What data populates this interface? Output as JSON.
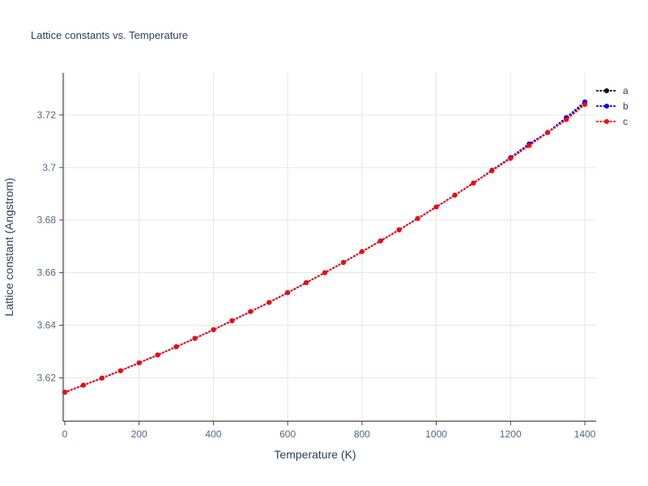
{
  "chart_data": {
    "type": "scatter",
    "title": "Lattice constants vs. Temperature",
    "xlabel": "Temperature (K)",
    "ylabel": "Lattice constant (Angstrom)",
    "xlim": [
      0,
      1400
    ],
    "ylim": [
      3.6035,
      3.736
    ],
    "xticks": [
      0,
      200,
      400,
      600,
      800,
      1000,
      1200,
      1400
    ],
    "xtick_labels": [
      "0",
      "200",
      "400",
      "600",
      "800",
      "1000",
      "1200",
      "1400"
    ],
    "yticks": [
      3.62,
      3.64,
      3.66,
      3.68,
      3.7,
      3.72
    ],
    "ytick_labels": [
      "3.62",
      "3.64",
      "3.66",
      "3.68",
      "3.7",
      "3.72"
    ],
    "grid": true,
    "legend_position": "top-right",
    "line_style": "dotted",
    "x": [
      0,
      50,
      100,
      150,
      200,
      250,
      300,
      350,
      400,
      450,
      500,
      550,
      600,
      650,
      700,
      750,
      800,
      850,
      900,
      950,
      1000,
      1050,
      1100,
      1150,
      1200,
      1250,
      1300,
      1350,
      1400
    ],
    "series": [
      {
        "name": "a",
        "color": "#000000",
        "values": [
          3.6145,
          3.6172,
          3.6199,
          3.6227,
          3.6257,
          3.6287,
          3.6318,
          3.635,
          3.6383,
          3.6417,
          3.6452,
          3.6487,
          3.6524,
          3.6562,
          3.66,
          3.6639,
          3.668,
          3.6721,
          3.6763,
          3.6806,
          3.685,
          3.6895,
          3.6941,
          3.6988,
          3.7035,
          3.7084,
          3.7133,
          3.7184,
          3.7246
        ]
      },
      {
        "name": "b",
        "color": "#0000ff",
        "values": [
          3.6145,
          3.6172,
          3.6199,
          3.6227,
          3.6257,
          3.6287,
          3.6318,
          3.635,
          3.6383,
          3.6417,
          3.6452,
          3.6487,
          3.6524,
          3.6562,
          3.66,
          3.6639,
          3.668,
          3.6721,
          3.6763,
          3.6806,
          3.685,
          3.6895,
          3.6941,
          3.699,
          3.7038,
          3.709,
          3.7134,
          3.719,
          3.725
        ]
      },
      {
        "name": "c",
        "color": "#ff0000",
        "values": [
          3.6145,
          3.6172,
          3.6199,
          3.6227,
          3.6257,
          3.6287,
          3.6318,
          3.635,
          3.6383,
          3.6417,
          3.6452,
          3.6487,
          3.6524,
          3.6562,
          3.66,
          3.6639,
          3.668,
          3.6721,
          3.6763,
          3.6806,
          3.685,
          3.6895,
          3.6941,
          3.6988,
          3.7035,
          3.7084,
          3.7133,
          3.7182,
          3.724
        ]
      }
    ],
    "colors": {
      "title_text": "#2a3f5f",
      "tick_text": "#506784",
      "axis_line": "#444444",
      "grid_line": "#e5e5e5",
      "background": "#ffffff"
    }
  }
}
